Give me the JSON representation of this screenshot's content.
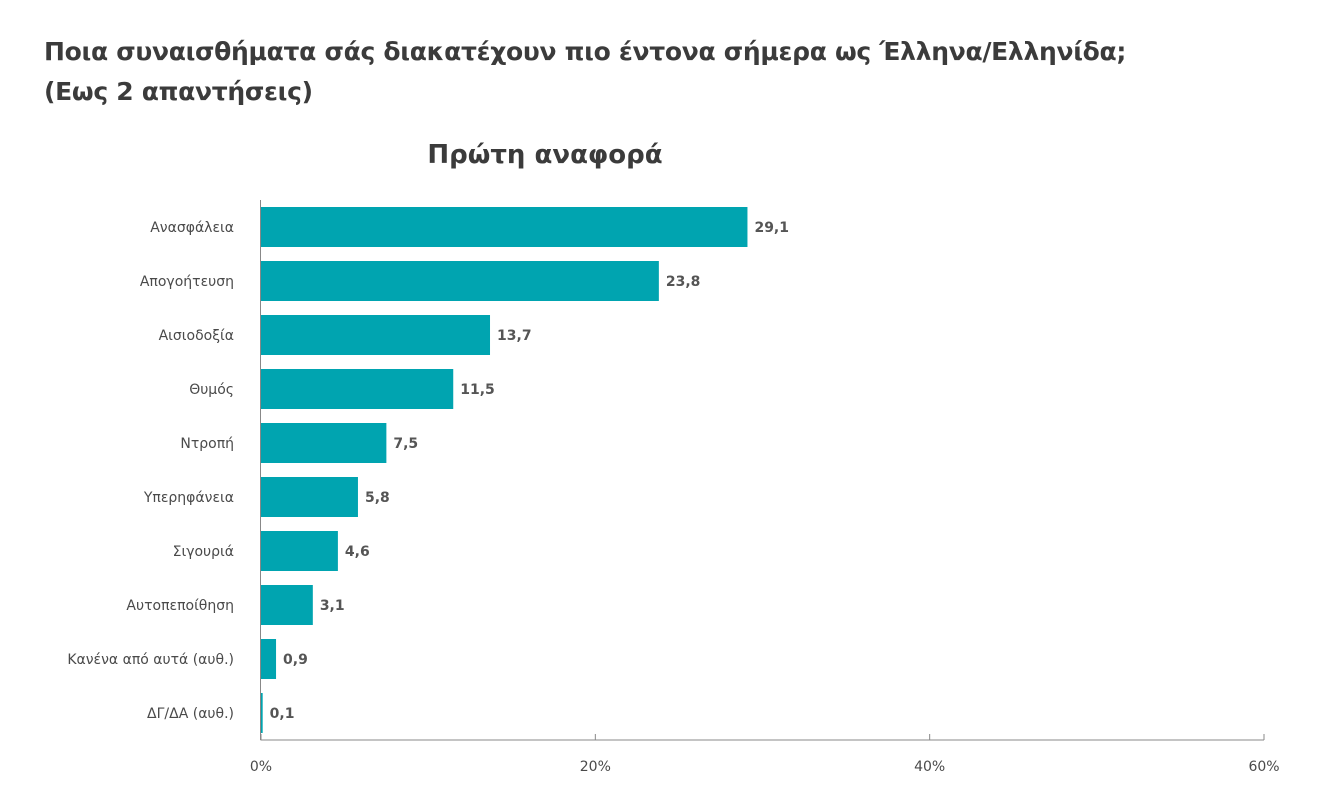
{
  "header": {
    "question_line1": "Ποια συναισθήματα σάς διακατέχουν πιο έντονα σήμερα ως Έλληνα/Ελληνίδα;",
    "question_line2": "(Εως 2 απαντήσεις)"
  },
  "chart_data": {
    "type": "bar",
    "orientation": "horizontal",
    "title": "Πρώτη αναφορά",
    "categories": [
      "Ανασφάλεια",
      "Απογοήτευση",
      "Αισιοδοξία",
      "Θυμός",
      "Ντροπή",
      "Υπερηφάνεια",
      "Σιγουριά",
      "Αυτοπεποίθηση",
      "Κανένα από αυτά (αυθ.)",
      "ΔΓ/ΔΑ (αυθ.)"
    ],
    "values": [
      29.1,
      23.8,
      13.7,
      11.5,
      7.5,
      5.8,
      4.6,
      3.1,
      0.9,
      0.1
    ],
    "value_labels": [
      "29,1",
      "23,8",
      "13,7",
      "11,5",
      "7,5",
      "5,8",
      "4,6",
      "3,1",
      "0,9",
      "0,1"
    ],
    "xlim": [
      0,
      60
    ],
    "x_ticks": [
      0,
      20,
      40,
      60
    ],
    "x_tick_labels": [
      "0%",
      "20%",
      "40%",
      "60%"
    ],
    "grid": false,
    "legend": "none",
    "colors": {
      "bar": "#00a4b0",
      "axis": "#888888"
    }
  }
}
